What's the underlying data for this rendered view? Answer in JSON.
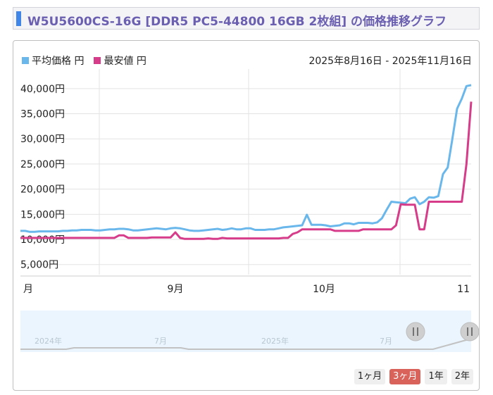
{
  "header": {
    "title": "W5U5600CS-16G [DDR5 PC5-44800 16GB 2枚組] の価格推移グラフ"
  },
  "legend": {
    "avg_label": "平均価格 円",
    "min_label": "最安値 円"
  },
  "date_range": "2025年8月16日 - 2025年11月16日",
  "range_buttons": [
    {
      "label": "1ヶ月",
      "active": false
    },
    {
      "label": "3ヶ月",
      "active": true
    },
    {
      "label": "1年",
      "active": false
    },
    {
      "label": "2年",
      "active": false
    }
  ],
  "navigator": {
    "labels": [
      "2024年",
      "7月",
      "2025年",
      "7月"
    ]
  },
  "colors": {
    "avg": "#6ab7ec",
    "min": "#d63c8a",
    "grid": "#e3e3e3",
    "nav_bg": "#eaf5fd",
    "handle": "#cfcfcf"
  },
  "chart_data": {
    "type": "line",
    "x_start": "2025-08-16",
    "x_end": "2025-11-16",
    "x_ticks": [
      "月",
      "9月",
      "10月",
      "11"
    ],
    "y_ticks": [
      "5,000円",
      "10,000円",
      "15,000円",
      "20,000円",
      "25,000円",
      "30,000円",
      "35,000円",
      "40,000円"
    ],
    "ylim": [
      3000,
      42500
    ],
    "series": [
      {
        "name": "平均価格 円",
        "values": [
          11700,
          11700,
          11500,
          11500,
          11600,
          11600,
          11600,
          11600,
          11600,
          11700,
          11700,
          11800,
          11800,
          11900,
          11900,
          11900,
          11800,
          11800,
          11900,
          12000,
          12000,
          12100,
          12100,
          12000,
          11800,
          11800,
          11900,
          12000,
          12100,
          12200,
          12100,
          12000,
          12200,
          12300,
          12200,
          12000,
          11800,
          11700,
          11700,
          11800,
          11900,
          12000,
          12100,
          11900,
          12000,
          12200,
          12000,
          12000,
          12200,
          12200,
          11900,
          11900,
          11900,
          12000,
          12000,
          12200,
          12400,
          12500,
          12600,
          12700,
          12800,
          14900,
          12900,
          12900,
          12900,
          12800,
          12600,
          12700,
          12800,
          13200,
          13200,
          13000,
          13300,
          13300,
          13300,
          13200,
          13400,
          14200,
          15900,
          17500,
          17400,
          17300,
          17200,
          18100,
          18400,
          17000,
          17500,
          18400,
          18300,
          18600,
          23000,
          24300,
          30000,
          36000,
          38000,
          40500,
          40700
        ]
      },
      {
        "name": "最安値 円",
        "values": [
          10300,
          10300,
          10300,
          10300,
          10300,
          10300,
          10300,
          10300,
          10300,
          10300,
          10300,
          10300,
          10300,
          10300,
          10300,
          10300,
          10300,
          10300,
          10300,
          10300,
          10300,
          10800,
          10800,
          10300,
          10300,
          10300,
          10300,
          10300,
          10400,
          10400,
          10400,
          10400,
          10400,
          11400,
          10300,
          10100,
          10100,
          10100,
          10100,
          10100,
          10200,
          10100,
          10100,
          10300,
          10200,
          10200,
          10200,
          10200,
          10200,
          10200,
          10200,
          10200,
          10200,
          10200,
          10200,
          10200,
          10300,
          10300,
          11100,
          11400,
          12000,
          12000,
          12000,
          12000,
          12000,
          12000,
          12000,
          11700,
          11700,
          11700,
          11700,
          11700,
          11700,
          12000,
          12000,
          12000,
          12000,
          12000,
          12000,
          12000,
          12800,
          17000,
          16900,
          16900,
          16900,
          12000,
          12000,
          17500,
          17500,
          17500,
          17500,
          17500,
          17500,
          17500,
          17500,
          25000,
          37400
        ]
      }
    ]
  }
}
